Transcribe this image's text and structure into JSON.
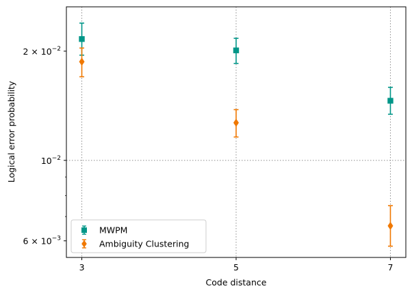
{
  "chart_data": {
    "type": "scatter",
    "title": "",
    "xlabel": "Code distance",
    "ylabel": "Logical error probability",
    "x": [
      3,
      5,
      7
    ],
    "xlim": [
      2.8,
      7.2
    ],
    "ylim": [
      0.0054,
      0.0265
    ],
    "yscale": "log",
    "grid": "major, dotted gray",
    "x_ticks": [
      {
        "value": 3,
        "label": "3"
      },
      {
        "value": 5,
        "label": "5"
      },
      {
        "value": 7,
        "label": "7"
      }
    ],
    "y_ticks": [
      {
        "value": 0.006,
        "label": "6 × 10",
        "exp": "−3"
      },
      {
        "value": 0.01,
        "label": "10",
        "exp": "−2"
      },
      {
        "value": 0.02,
        "label": "2 × 10",
        "exp": "−2"
      }
    ],
    "legend_position": "lower-left",
    "series": [
      {
        "name": "MWPM",
        "color": "#009688",
        "marker": "square",
        "values": [
          0.0216,
          0.0201,
          0.0146
        ],
        "err_low": [
          0.0021,
          0.0016,
          0.0012
        ],
        "err_high": [
          0.0023,
          0.0016,
          0.0013
        ]
      },
      {
        "name": "Ambiguity Clustering",
        "color": "#f07800",
        "marker": "diamond",
        "values": [
          0.0187,
          0.0127,
          0.0066
        ],
        "err_low": [
          0.0017,
          0.0011,
          0.0008
        ],
        "err_high": [
          0.0017,
          0.0011,
          0.0009
        ]
      }
    ]
  }
}
